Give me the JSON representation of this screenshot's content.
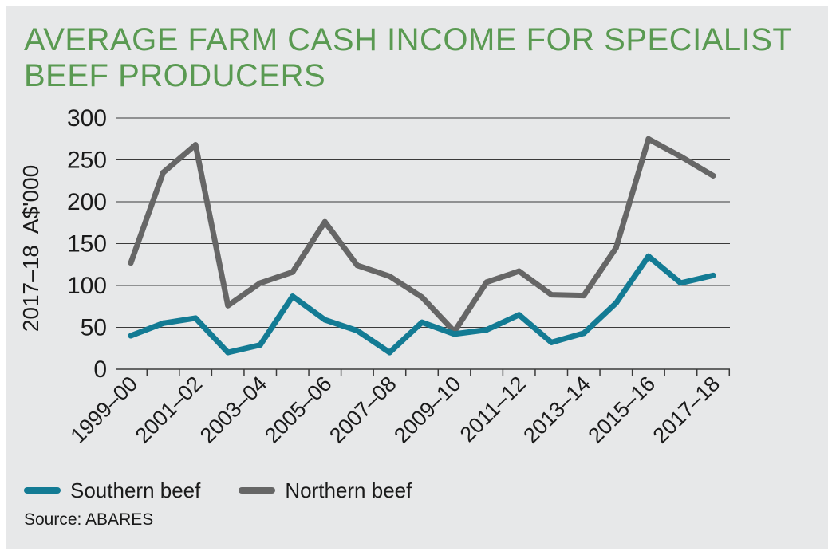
{
  "title_lines": [
    "AVERAGE FARM CASH INCOME FOR SPECIALIST",
    "BEEF PRODUCERS"
  ],
  "source": "Source: ABARES",
  "colors": {
    "southern": "#137b94",
    "northern": "#666666",
    "title": "#5a9a52",
    "panel": "#e7e8e9"
  },
  "chart_data": {
    "type": "line",
    "title": "AVERAGE FARM CASH INCOME FOR SPECIALIST BEEF PRODUCERS",
    "ylabel": "2017–18  A$'000",
    "xlabel": "",
    "ylim": [
      0,
      300
    ],
    "yticks": [
      0,
      50,
      100,
      150,
      200,
      250,
      300
    ],
    "grid": true,
    "legend": "bottom-left",
    "categories": [
      "1999–00",
      "2000–01",
      "2001–02",
      "2002–03",
      "2003–04",
      "2004–05",
      "2005–06",
      "2006–07",
      "2007–08",
      "2008–09",
      "2009–10",
      "2010–11",
      "2011–12",
      "2012–13",
      "2013–14",
      "2014–15",
      "2015–16",
      "2016–17",
      "2017–18"
    ],
    "tick_labels": [
      "1999–00",
      "2001–02",
      "2003–04",
      "2005–06",
      "2007–08",
      "2009–10",
      "2011–12",
      "2013–14",
      "2015–16",
      "2017–18"
    ],
    "series": [
      {
        "name": "Southern beef",
        "color": "#137b94",
        "values": [
          40,
          55,
          61,
          20,
          29,
          87,
          59,
          46,
          20,
          56,
          42,
          47,
          65,
          32,
          43,
          79,
          135,
          103,
          112
        ]
      },
      {
        "name": "Northern beef",
        "color": "#666666",
        "values": [
          127,
          235,
          268,
          76,
          103,
          116,
          176,
          124,
          111,
          86,
          45,
          104,
          117,
          89,
          88,
          145,
          275,
          254,
          231
        ]
      }
    ]
  }
}
